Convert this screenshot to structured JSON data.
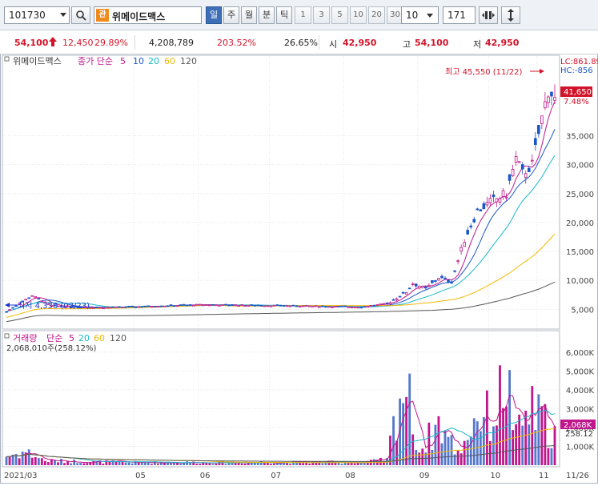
{
  "toolbar": {
    "code": "101730",
    "search_icon": "search-icon",
    "badge": "관",
    "stock_name": "위메이드맥스",
    "periods": [
      {
        "label": "일",
        "active": true
      },
      {
        "label": "주",
        "active": false
      },
      {
        "label": "월",
        "active": false
      },
      {
        "label": "분",
        "active": false
      },
      {
        "label": "틱",
        "active": false
      }
    ],
    "ticks": [
      "1",
      "3",
      "5",
      "10",
      "20",
      "30"
    ],
    "count_select": "10",
    "bars": "171"
  },
  "quote": {
    "price": "54,100",
    "change": "12,450",
    "change_pct": "29.89%",
    "volume": "4,208,789",
    "volume_ratio": "203.52%",
    "turnover": "26.65%",
    "open_label": "시",
    "open": "42,950",
    "high_label": "고",
    "high": "54,100",
    "low_label": "저",
    "low": "42,950"
  },
  "price_panel": {
    "legend_name": "위메이드맥스",
    "legend_type": "종가 단순",
    "ma": [
      {
        "label": "5",
        "color": "#c0168c"
      },
      {
        "label": "10",
        "color": "#1a56c8"
      },
      {
        "label": "20",
        "color": "#18b8c8"
      },
      {
        "label": "60",
        "color": "#f2b800"
      },
      {
        "label": "120",
        "color": "#555555"
      }
    ],
    "lc_label": "LC:861.89",
    "hc_label": "HC:-856",
    "high_annotation": "최고 45,550 (11/22)",
    "low_annotation": "최저 4,330 (03/23)",
    "last_price_tag": "41,650",
    "pct_tag": "7.48%",
    "y_ticks": [
      "35,000",
      "30,000",
      "25,000",
      "20,000",
      "15,000",
      "10,000",
      "5,000"
    ]
  },
  "volume_panel": {
    "legend_name": "거래량",
    "legend_type": "단순",
    "ma": [
      {
        "label": "5",
        "color": "#c0168c"
      },
      {
        "label": "20",
        "color": "#18b8c8"
      },
      {
        "label": "60",
        "color": "#f2b800"
      },
      {
        "label": "120",
        "color": "#555555"
      }
    ],
    "value_text": "2,068,010주(258.12%)",
    "last_vol_tag": "2,068K",
    "ratio_tag": "258.12",
    "y_ticks": [
      "6,000K",
      "5,000K",
      "4,000K",
      "3,000K",
      "2,000K",
      "1,000K"
    ]
  },
  "x_axis": [
    "2021/03",
    "05",
    "06",
    "07",
    "08",
    "09",
    "10",
    "11",
    "11/26"
  ],
  "chart_data": {
    "type": "candlestick",
    "title": "위메이드맥스",
    "ylim": [
      2000,
      46000
    ],
    "volume_ylim": [
      0,
      6500
    ],
    "high": 45550,
    "high_date": "11/22",
    "low": 4330,
    "low_date": "03/23",
    "last": 41650,
    "close_anchors": [
      {
        "i": 0,
        "v": 4600
      },
      {
        "i": 8,
        "v": 7400
      },
      {
        "i": 14,
        "v": 5600
      },
      {
        "i": 30,
        "v": 5300
      },
      {
        "i": 60,
        "v": 5800
      },
      {
        "i": 90,
        "v": 5600
      },
      {
        "i": 110,
        "v": 5400
      },
      {
        "i": 118,
        "v": 6000
      },
      {
        "i": 124,
        "v": 8000
      },
      {
        "i": 126,
        "v": 9500
      },
      {
        "i": 130,
        "v": 8500
      },
      {
        "i": 134,
        "v": 10500
      },
      {
        "i": 138,
        "v": 9800
      },
      {
        "i": 142,
        "v": 17000
      },
      {
        "i": 146,
        "v": 22000
      },
      {
        "i": 150,
        "v": 23500
      },
      {
        "i": 155,
        "v": 25000
      },
      {
        "i": 158,
        "v": 31000
      },
      {
        "i": 160,
        "v": 28500
      },
      {
        "i": 163,
        "v": 30000
      },
      {
        "i": 166,
        "v": 38000
      },
      {
        "i": 168,
        "v": 43000
      },
      {
        "i": 170,
        "v": 41650
      }
    ],
    "volume_anchors": [
      {
        "i": 0,
        "v": 600
      },
      {
        "i": 6,
        "v": 900
      },
      {
        "i": 12,
        "v": 300
      },
      {
        "i": 40,
        "v": 180
      },
      {
        "i": 110,
        "v": 200
      },
      {
        "i": 118,
        "v": 350
      },
      {
        "i": 122,
        "v": 4800
      },
      {
        "i": 124,
        "v": 5100
      },
      {
        "i": 128,
        "v": 900
      },
      {
        "i": 134,
        "v": 2800
      },
      {
        "i": 140,
        "v": 800
      },
      {
        "i": 146,
        "v": 3400
      },
      {
        "i": 151,
        "v": 3100
      },
      {
        "i": 155,
        "v": 6000
      },
      {
        "i": 158,
        "v": 1800
      },
      {
        "i": 162,
        "v": 3700
      },
      {
        "i": 166,
        "v": 3000
      },
      {
        "i": 170,
        "v": 2068
      }
    ]
  }
}
